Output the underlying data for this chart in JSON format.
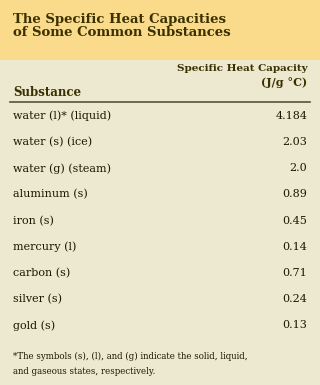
{
  "title_line1": "The Specific Heat Capacities",
  "title_line2": "of Some Common Substances",
  "title_bg_color": "#FADA8B",
  "table_bg_color": "#EDE8D0",
  "col1_header": "Substance",
  "col2_header_line1": "Specific Heat Capacity",
  "col2_header_line2": "(J/g °C)",
  "substances": [
    "water (l)* (liquid)",
    "water (s) (ice)",
    "water (g) (steam)",
    "aluminum (s)",
    "iron (s)",
    "mercury (l)",
    "carbon (s)",
    "silver (s)",
    "gold (s)"
  ],
  "values": [
    "4.184",
    "2.03",
    "2.0",
    "0.89",
    "0.45",
    "0.14",
    "0.71",
    "0.24",
    "0.13"
  ],
  "footnote_line1": "*The symbols (s), (l), and (g) indicate the solid, liquid,",
  "footnote_line2": "and gaseous states, respectively.",
  "header_text_color": "#3A3000",
  "body_text_color": "#1A1A00",
  "title_text_color": "#3A3000",
  "line_color": "#555533"
}
